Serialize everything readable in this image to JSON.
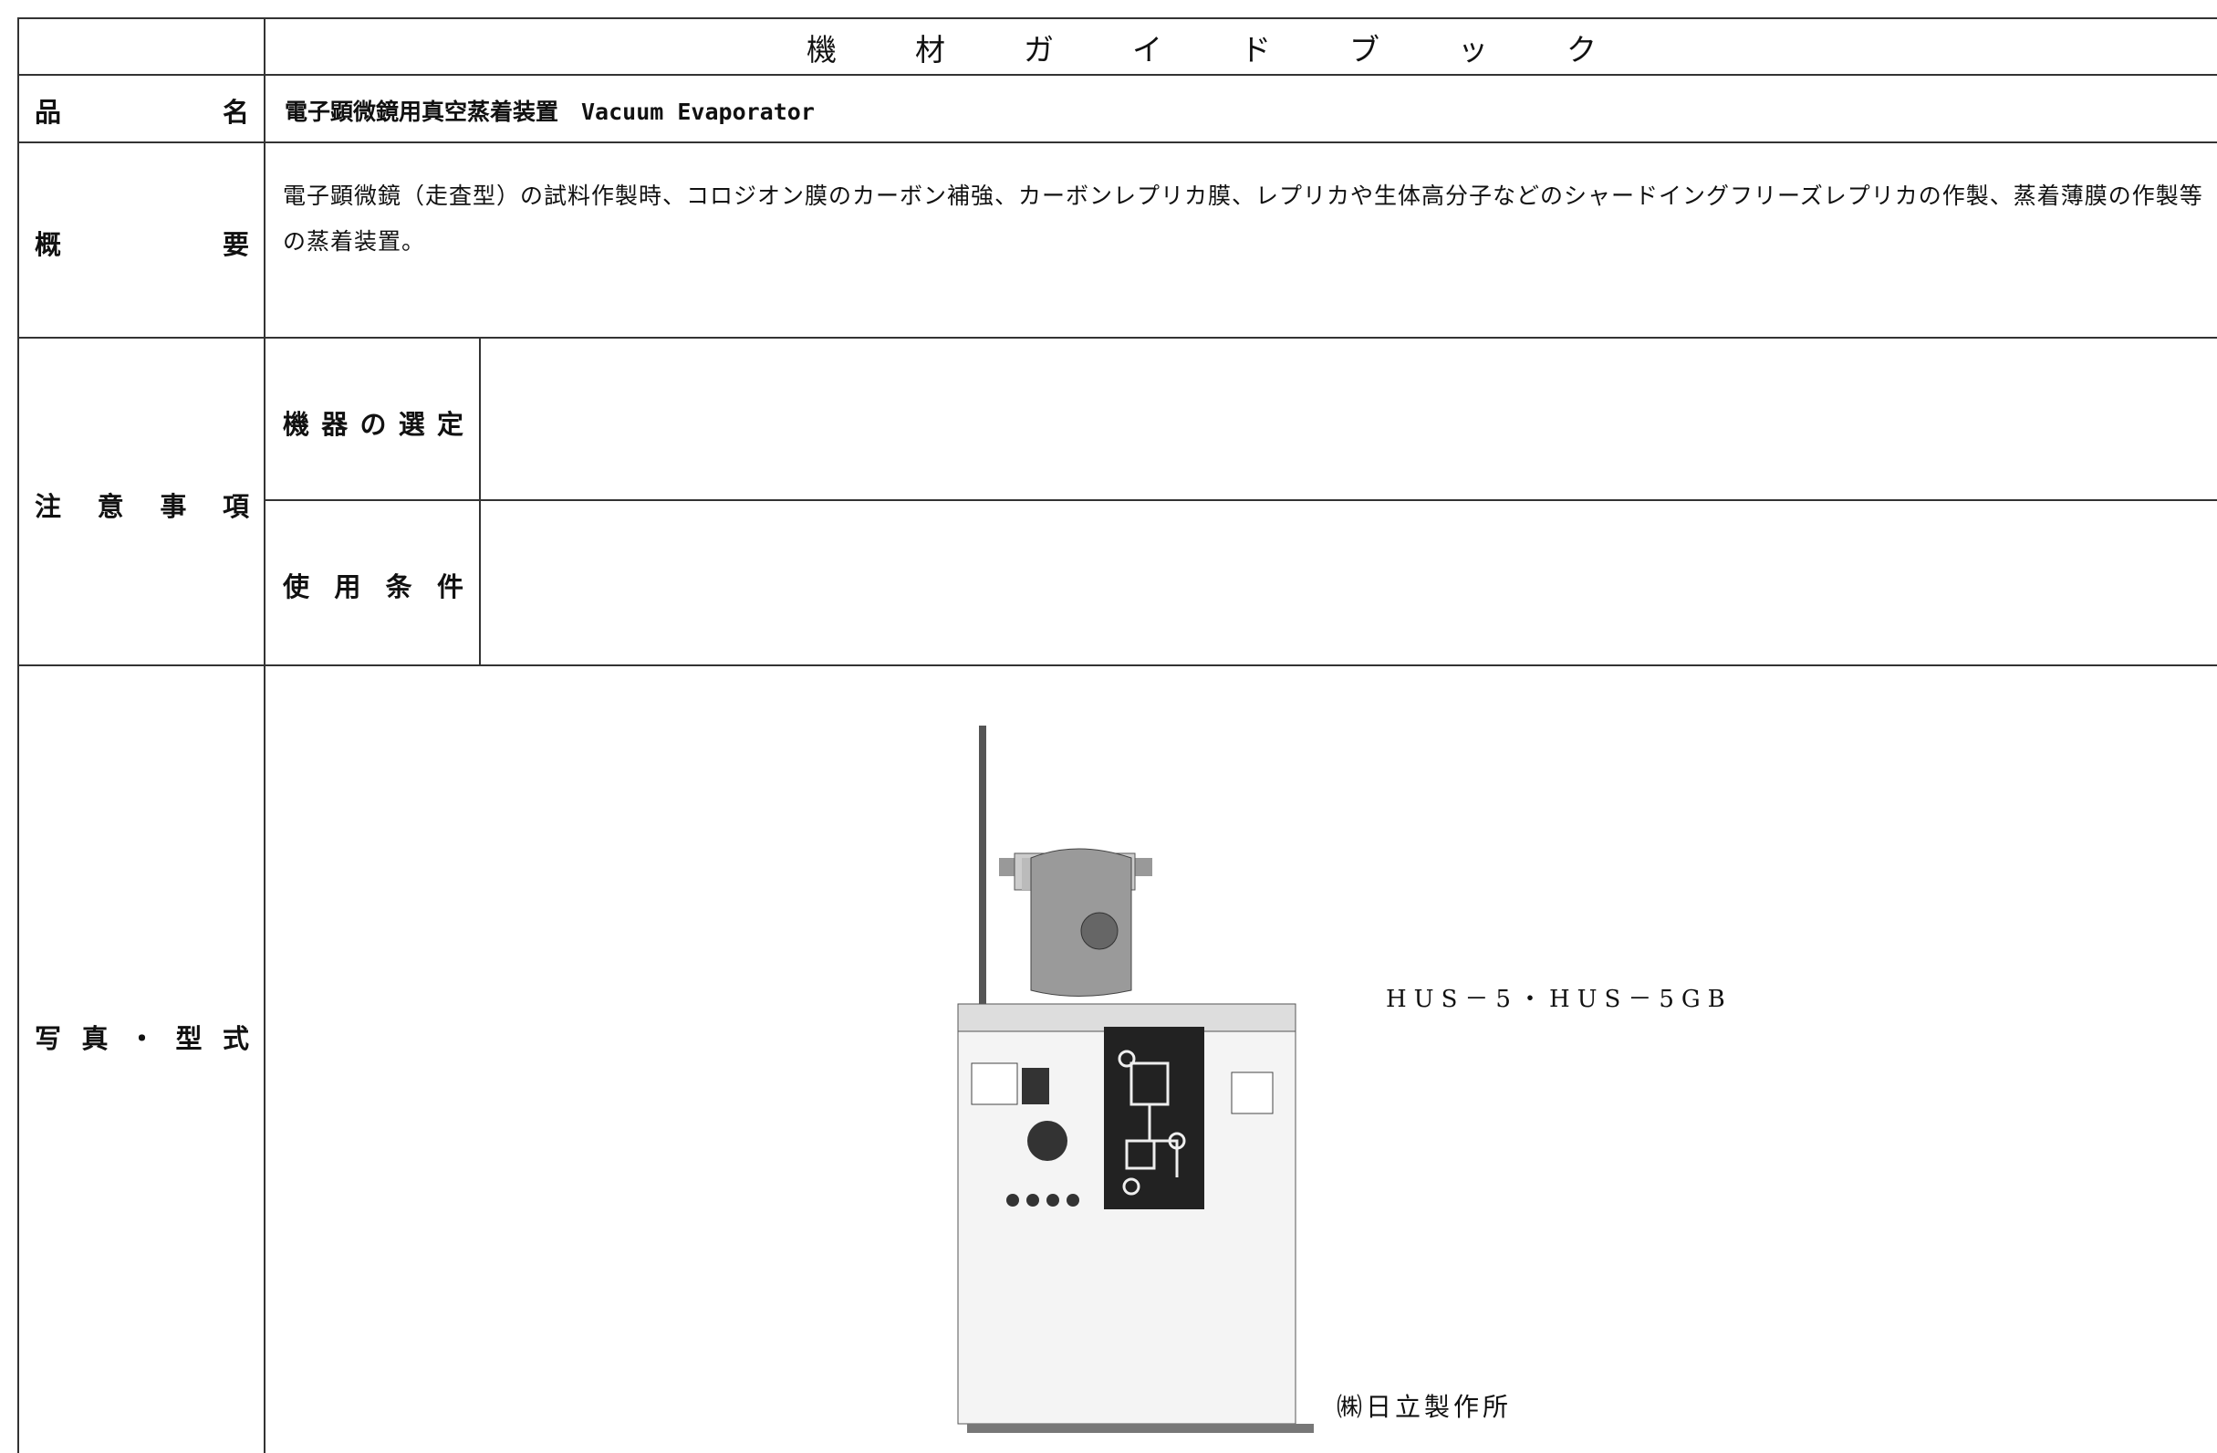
{
  "header": {
    "title": "機材ガイドブック"
  },
  "product_name": {
    "label": "品名",
    "value": "電子顕微鏡用真空蒸着装置　Vacuum Evaporator"
  },
  "overview": {
    "label": "概要",
    "value": "電子顕微鏡（走査型）の試料作製時、コロジオン膜のカーボン補強、カーボンレプリカ膜、レプリカや生体高分子などのシャードイングフリーズレプリカの作製、蒸着薄膜の作製等の蒸着装置。"
  },
  "notes": {
    "label": "注意事項",
    "selection": {
      "label": "機器の選定"
    },
    "conditions": {
      "label": "使用条件"
    }
  },
  "photo": {
    "label": "写真・型式",
    "model": "HUS－5・HUS－5GB",
    "maker": "㈱日立製作所"
  }
}
